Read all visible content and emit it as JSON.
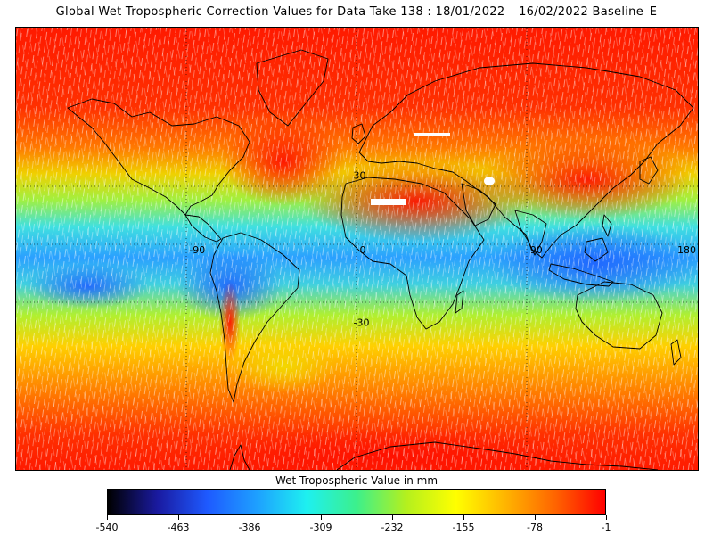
{
  "title": "Global Wet Tropospheric Correction Values for Data Take 138 : 18/01/2022 – 16/02/2022 Baseline–E",
  "map": {
    "grid_labels": {
      "lon": [
        {
          "value": -90,
          "text": "-90"
        },
        {
          "value": 0,
          "text": "0"
        },
        {
          "value": 90,
          "text": "90"
        },
        {
          "value": 180,
          "text": "180"
        }
      ],
      "lat": [
        {
          "value": 30,
          "text": "30"
        },
        {
          "value": -30,
          "text": "-30"
        }
      ]
    },
    "grid": true,
    "projection": "equirectangular"
  },
  "colorbar": {
    "title": "Wet Tropospheric Value in mm",
    "min": -540,
    "max": -1,
    "tick_labels": [
      "-540",
      "-463",
      "-386",
      "-309",
      "-232",
      "-155",
      "-78",
      "-1"
    ],
    "colors": [
      "#000000",
      "#1a1aa0",
      "#1e5aff",
      "#1ea0ff",
      "#1ef0f0",
      "#3cf08c",
      "#b4f01e",
      "#ffff00",
      "#ffb400",
      "#ff6400",
      "#ff0000"
    ]
  }
}
